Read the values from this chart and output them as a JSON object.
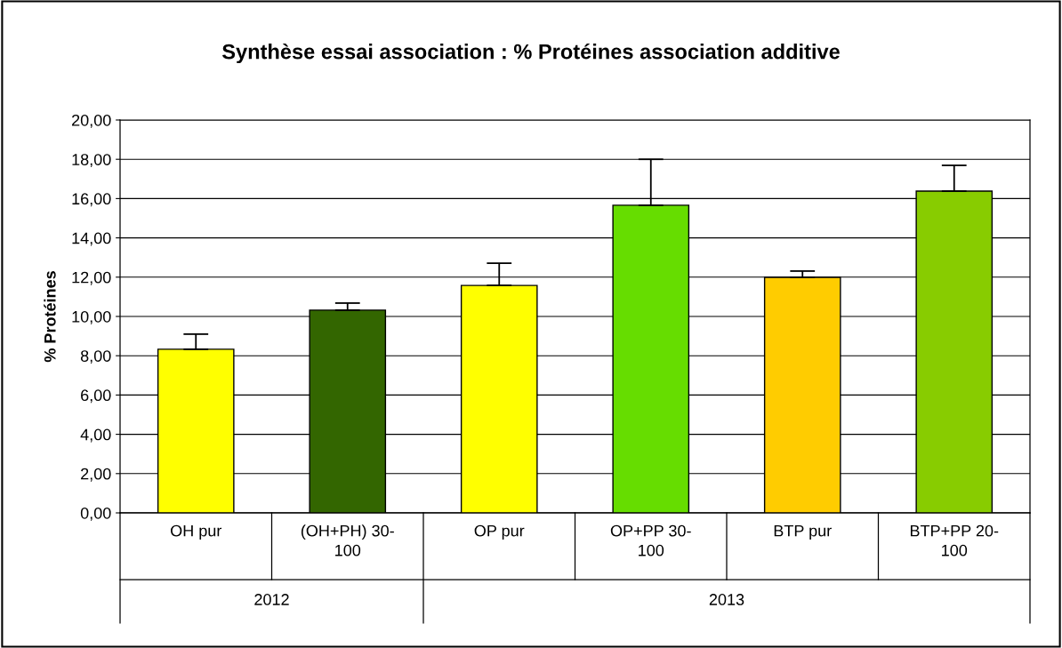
{
  "chart_data": {
    "type": "bar",
    "title": "Synthèse essai association : % Protéines association additive",
    "ylabel": "% Protéines",
    "categories": [
      "OH pur",
      "(OH+PH) 30-100",
      "OP pur",
      "OP+PP 30-100",
      "BTP pur",
      "BTP+PP 20-100"
    ],
    "values": [
      8.33,
      10.32,
      11.58,
      15.66,
      11.99,
      16.38
    ],
    "errors": [
      [
        8.33,
        9.1
      ],
      [
        10.32,
        10.68
      ],
      [
        11.58,
        12.71
      ],
      [
        15.66,
        18.0
      ],
      [
        11.99,
        12.31
      ],
      [
        16.38,
        17.69
      ]
    ],
    "colors": [
      "#ffff00",
      "#336600",
      "#ffff00",
      "#66dd00",
      "#ffcc00",
      "#88cc00"
    ],
    "ylim": [
      0,
      20
    ],
    "yticks": [
      {
        "value": 0,
        "label": "0,00"
      },
      {
        "value": 2,
        "label": "2,00"
      },
      {
        "value": 4,
        "label": "4,00"
      },
      {
        "value": 6,
        "label": "6,00"
      },
      {
        "value": 8,
        "label": "8,00"
      },
      {
        "value": 10,
        "label": "10,00"
      },
      {
        "value": 12,
        "label": "12,00"
      },
      {
        "value": 14,
        "label": "14,00"
      },
      {
        "value": 16,
        "label": "16,00"
      },
      {
        "value": 18,
        "label": "18,00"
      },
      {
        "value": 20,
        "label": "20,00"
      }
    ],
    "grid": "y",
    "annotations": [
      "2012",
      "2013"
    ]
  }
}
